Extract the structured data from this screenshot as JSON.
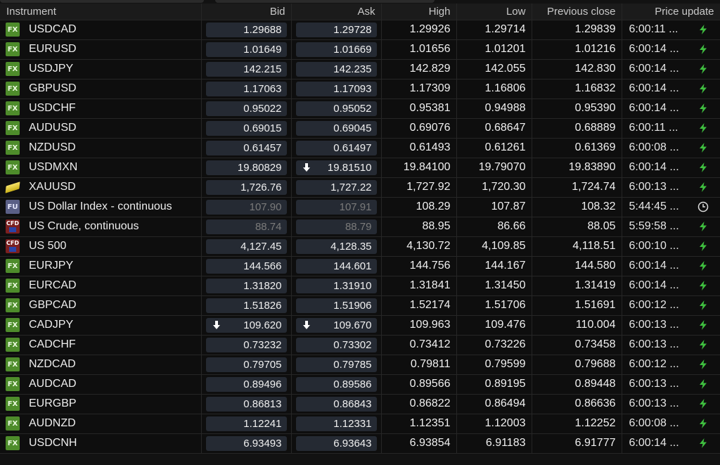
{
  "columns": {
    "instrument": "Instrument",
    "bid": "Bid",
    "ask": "Ask",
    "high": "High",
    "low": "Low",
    "prev_close": "Previous close",
    "price_update": "Price update"
  },
  "colors": {
    "bolt": "#3fbf3f",
    "pill": "#252a33",
    "fx_badge": "#4e8c2b"
  },
  "rows": [
    {
      "badge": "FX",
      "name": "USDCAD",
      "bid": "1.29688",
      "ask": "1.29728",
      "high": "1.29926",
      "low": "1.29714",
      "prev": "1.29839",
      "time": "6:00:11 ...",
      "status": "bolt-icon"
    },
    {
      "badge": "FX",
      "name": "EURUSD",
      "bid": "1.01649",
      "ask": "1.01669",
      "high": "1.01656",
      "low": "1.01201",
      "prev": "1.01216",
      "time": "6:00:14 ...",
      "status": "bolt-icon"
    },
    {
      "badge": "FX",
      "name": "USDJPY",
      "bid": "142.215",
      "ask": "142.235",
      "high": "142.829",
      "low": "142.055",
      "prev": "142.830",
      "time": "6:00:14 ...",
      "status": "bolt-icon"
    },
    {
      "badge": "FX",
      "name": "GBPUSD",
      "bid": "1.17063",
      "ask": "1.17093",
      "high": "1.17309",
      "low": "1.16806",
      "prev": "1.16832",
      "time": "6:00:14 ...",
      "status": "bolt-icon"
    },
    {
      "badge": "FX",
      "name": "USDCHF",
      "bid": "0.95022",
      "ask": "0.95052",
      "high": "0.95381",
      "low": "0.94988",
      "prev": "0.95390",
      "time": "6:00:14 ...",
      "status": "bolt-icon"
    },
    {
      "badge": "FX",
      "name": "AUDUSD",
      "bid": "0.69015",
      "ask": "0.69045",
      "high": "0.69076",
      "low": "0.68647",
      "prev": "0.68889",
      "time": "6:00:11 ...",
      "status": "bolt-icon"
    },
    {
      "badge": "FX",
      "name": "NZDUSD",
      "bid": "0.61457",
      "ask": "0.61497",
      "high": "0.61493",
      "low": "0.61261",
      "prev": "0.61369",
      "time": "6:00:08 ...",
      "status": "bolt-icon"
    },
    {
      "badge": "FX",
      "name": "USDMXN",
      "bid": "19.80829",
      "ask": "19.81510",
      "ask_arrow": true,
      "high": "19.84100",
      "low": "19.79070",
      "prev": "19.83890",
      "time": "6:00:14 ...",
      "status": "bolt-icon"
    },
    {
      "badge": "GOLD",
      "name": "XAUUSD",
      "bid": "1,726.76",
      "ask": "1,727.22",
      "high": "1,727.92",
      "low": "1,720.30",
      "prev": "1,724.74",
      "time": "6:00:13 ...",
      "status": "bolt-icon"
    },
    {
      "badge": "FU",
      "name": "US Dollar Index - continuous",
      "bid": "107.90",
      "ask": "107.91",
      "stale": true,
      "high": "108.29",
      "low": "107.87",
      "prev": "108.32",
      "time": "5:44:45 ...",
      "status": "clock-icon"
    },
    {
      "badge": "CFD",
      "name": "US Crude, continuous",
      "bid": "88.74",
      "ask": "88.79",
      "stale": true,
      "high": "88.95",
      "low": "86.66",
      "prev": "88.05",
      "time": "5:59:58 ...",
      "status": "bolt-icon"
    },
    {
      "badge": "CFD",
      "name": "US 500",
      "bid": "4,127.45",
      "ask": "4,128.35",
      "high": "4,130.72",
      "low": "4,109.85",
      "prev": "4,118.51",
      "time": "6:00:10 ...",
      "status": "bolt-icon"
    },
    {
      "badge": "FX",
      "name": "EURJPY",
      "bid": "144.566",
      "ask": "144.601",
      "high": "144.756",
      "low": "144.167",
      "prev": "144.580",
      "time": "6:00:14 ...",
      "status": "bolt-icon"
    },
    {
      "badge": "FX",
      "name": "EURCAD",
      "bid": "1.31820",
      "ask": "1.31910",
      "high": "1.31841",
      "low": "1.31450",
      "prev": "1.31419",
      "time": "6:00:14 ...",
      "status": "bolt-icon"
    },
    {
      "badge": "FX",
      "name": "GBPCAD",
      "bid": "1.51826",
      "ask": "1.51906",
      "high": "1.52174",
      "low": "1.51706",
      "prev": "1.51691",
      "time": "6:00:12 ...",
      "status": "bolt-icon"
    },
    {
      "badge": "FX",
      "name": "CADJPY",
      "bid": "109.620",
      "bid_arrow": true,
      "ask": "109.670",
      "ask_arrow": true,
      "high": "109.963",
      "low": "109.476",
      "prev": "110.004",
      "time": "6:00:13 ...",
      "status": "bolt-icon"
    },
    {
      "badge": "FX",
      "name": "CADCHF",
      "bid": "0.73232",
      "ask": "0.73302",
      "high": "0.73412",
      "low": "0.73226",
      "prev": "0.73458",
      "time": "6:00:13 ...",
      "status": "bolt-icon"
    },
    {
      "badge": "FX",
      "name": "NZDCAD",
      "bid": "0.79705",
      "ask": "0.79785",
      "high": "0.79811",
      "low": "0.79599",
      "prev": "0.79688",
      "time": "6:00:12 ...",
      "status": "bolt-icon"
    },
    {
      "badge": "FX",
      "name": "AUDCAD",
      "bid": "0.89496",
      "ask": "0.89586",
      "high": "0.89566",
      "low": "0.89195",
      "prev": "0.89448",
      "time": "6:00:13 ...",
      "status": "bolt-icon"
    },
    {
      "badge": "FX",
      "name": "EURGBP",
      "bid": "0.86813",
      "ask": "0.86843",
      "high": "0.86822",
      "low": "0.86494",
      "prev": "0.86636",
      "time": "6:00:13 ...",
      "status": "bolt-icon"
    },
    {
      "badge": "FX",
      "name": "AUDNZD",
      "bid": "1.12241",
      "ask": "1.12331",
      "high": "1.12351",
      "low": "1.12003",
      "prev": "1.12252",
      "time": "6:00:08 ...",
      "status": "bolt-icon"
    },
    {
      "badge": "FX",
      "name": "USDCNH",
      "bid": "6.93493",
      "ask": "6.93643",
      "high": "6.93854",
      "low": "6.91183",
      "prev": "6.91777",
      "time": "6:00:14 ...",
      "status": "bolt-icon"
    }
  ]
}
